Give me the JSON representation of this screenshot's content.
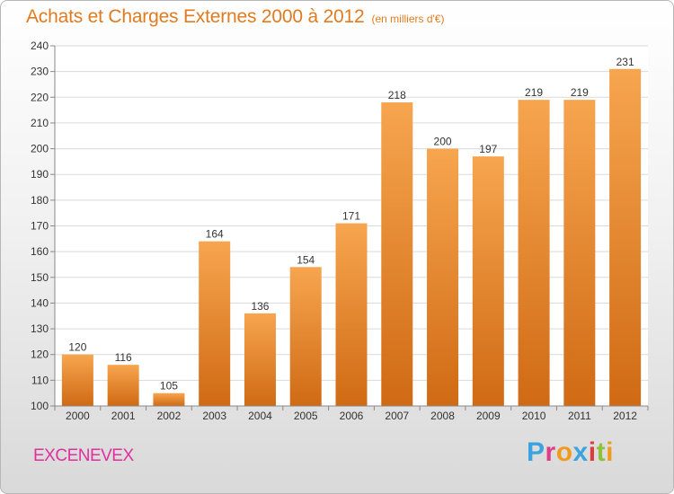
{
  "header": {
    "title": "Achats et Charges Externes 2000 à 2012",
    "subtitle": "(en milliers d'€)"
  },
  "footer": {
    "place": "EXCENEVEX",
    "logo_text": "Proxiti",
    "logo_colors": [
      "#3aa3e0",
      "#e03a8a",
      "#f29a1e",
      "#3aa3e0",
      "#e03a3a",
      "#8fc23a",
      "#f29a1e"
    ]
  },
  "chart_data": {
    "type": "bar",
    "categories": [
      "2000",
      "2001",
      "2002",
      "2003",
      "2004",
      "2005",
      "2006",
      "2007",
      "2008",
      "2009",
      "2010",
      "2011",
      "2012"
    ],
    "values": [
      120,
      116,
      105,
      164,
      136,
      154,
      171,
      218,
      200,
      197,
      219,
      219,
      231
    ],
    "data_labels": [
      "120",
      "116",
      "105",
      "164",
      "136",
      "154",
      "171",
      "218",
      "200",
      "197",
      "219",
      "219",
      "231"
    ],
    "ylim": [
      100,
      240
    ],
    "yticks": [
      "100",
      "110",
      "120",
      "130",
      "140",
      "150",
      "160",
      "170",
      "180",
      "190",
      "200",
      "210",
      "220",
      "230",
      "240"
    ],
    "grid": "horizontal",
    "bar_color_top": "#f7a54f",
    "bar_color_bottom": "#d06a14"
  }
}
